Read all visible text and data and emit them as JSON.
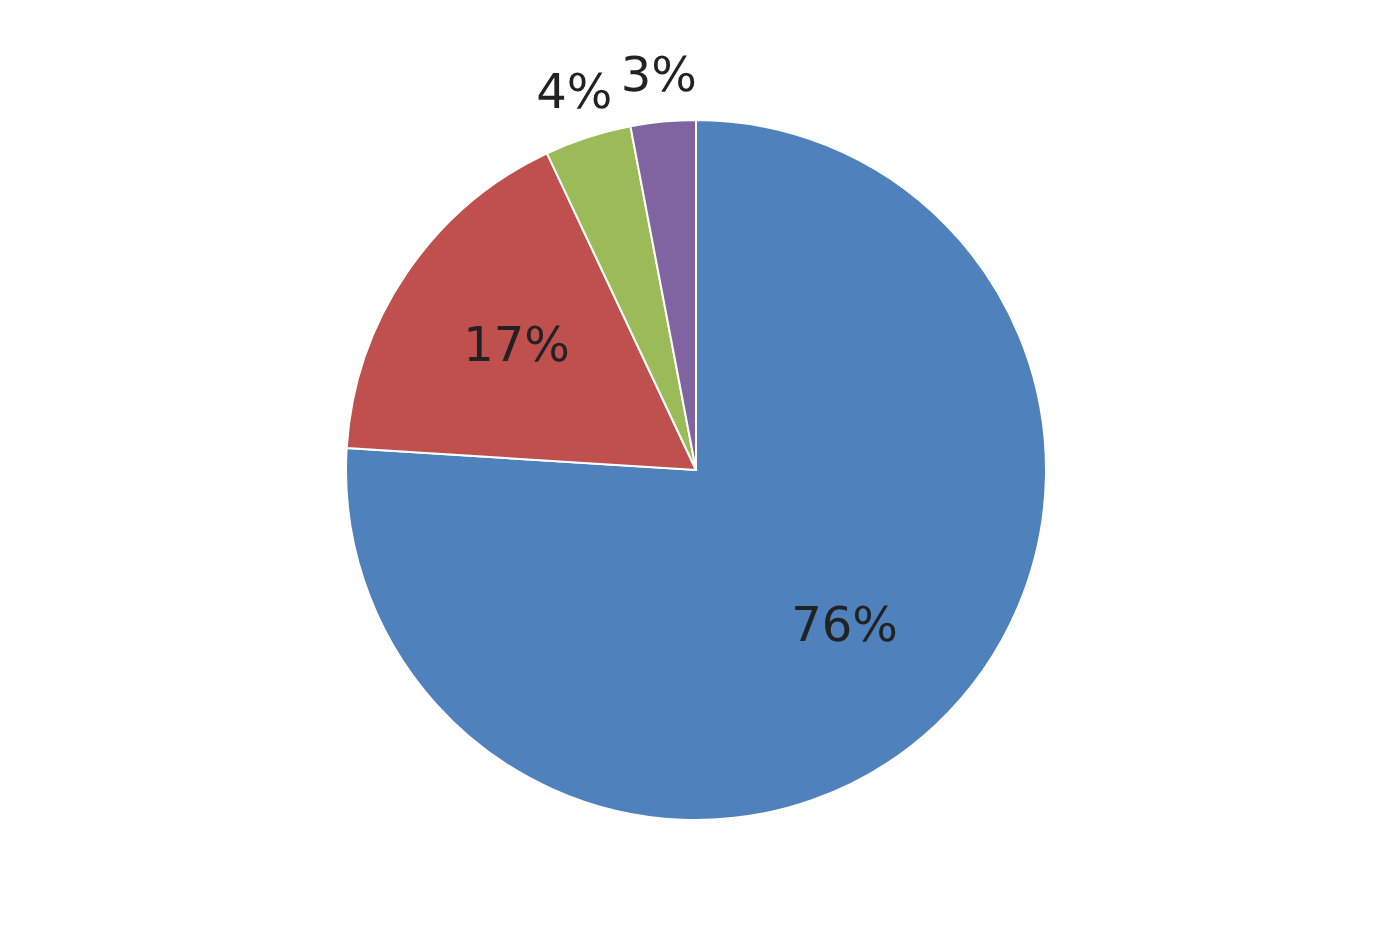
{
  "chart_data": {
    "type": "pie",
    "categories": [
      null,
      null,
      null,
      null
    ],
    "values": [
      76,
      17,
      4,
      3
    ],
    "colors": [
      "#4f81bd",
      "#c0504d",
      "#9bbb59",
      "#8064a2"
    ],
    "value_labels": [
      "76%",
      "17%",
      "4%",
      "3%"
    ]
  }
}
